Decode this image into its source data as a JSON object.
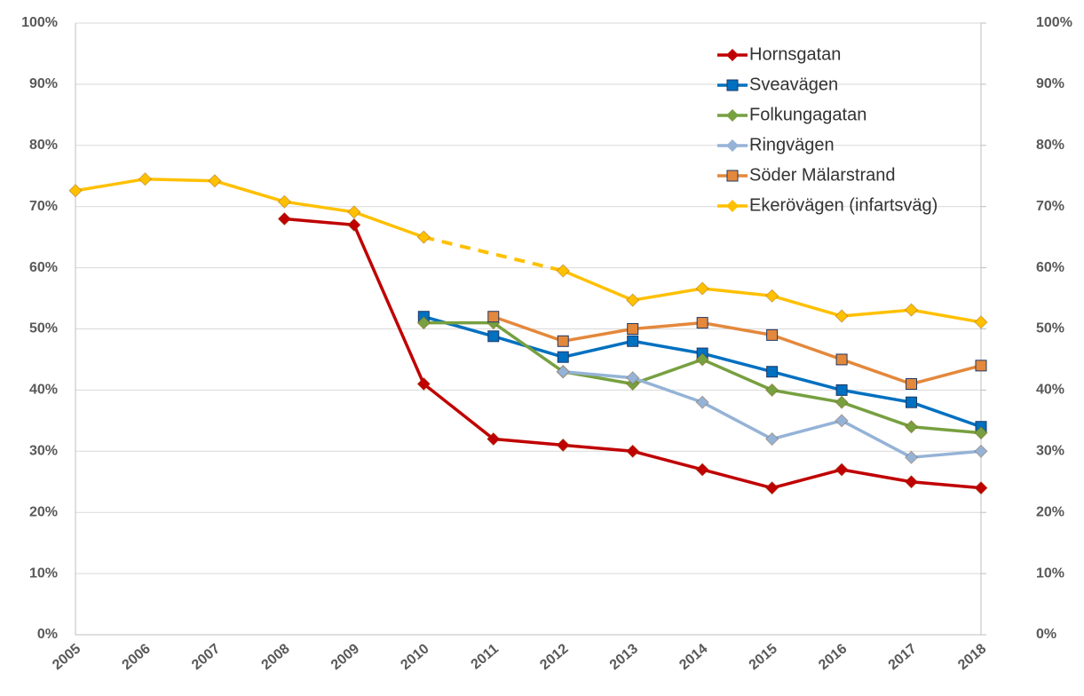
{
  "chart_data": {
    "type": "line",
    "categories": [
      "2005",
      "2006",
      "2007",
      "2008",
      "2009",
      "2010",
      "2011",
      "2012",
      "2013",
      "2014",
      "2015",
      "2016",
      "2017",
      "2018"
    ],
    "series": [
      {
        "name": "Hornsgatan",
        "color": "#c00000",
        "marker": "diamond",
        "values": [
          null,
          null,
          null,
          68,
          67,
          41,
          32,
          31,
          30,
          27,
          24,
          27,
          25,
          24
        ]
      },
      {
        "name": "Sveavägen",
        "color": "#0070c0",
        "marker": "square",
        "values": [
          null,
          null,
          null,
          null,
          null,
          52,
          48.8,
          45.4,
          48,
          46,
          43,
          40,
          38,
          34
        ]
      },
      {
        "name": "Folkungagatan",
        "color": "#77a040",
        "marker": "diamond",
        "values": [
          null,
          null,
          null,
          null,
          null,
          51,
          51,
          43,
          41,
          45,
          40,
          38,
          34,
          33
        ]
      },
      {
        "name": "Ringvägen",
        "color": "#95b3d7",
        "marker": "diamond",
        "values": [
          null,
          null,
          null,
          null,
          null,
          null,
          null,
          43,
          42,
          38,
          32,
          35,
          29,
          30
        ]
      },
      {
        "name": "Söder Mälarstrand",
        "color": "#e4883c",
        "marker": "square",
        "values": [
          null,
          null,
          null,
          null,
          null,
          null,
          52,
          48,
          50,
          51,
          49,
          45,
          41,
          44
        ]
      },
      {
        "name": "Ekerövägen (infartsväg)",
        "color": "#ffc000",
        "marker": "diamond",
        "gaps": "dashed",
        "values": [
          72.6,
          74.5,
          74.2,
          70.8,
          69.1,
          65,
          null,
          59.5,
          54.7,
          56.6,
          55.4,
          52.1,
          53.1,
          51.1
        ]
      }
    ],
    "ylim": [
      0,
      100
    ],
    "yticks": [
      {
        "value": 0,
        "label": "0%"
      },
      {
        "value": 10,
        "label": "10%"
      },
      {
        "value": 20,
        "label": "20%"
      },
      {
        "value": 30,
        "label": "30%"
      },
      {
        "value": 40,
        "label": "40%"
      },
      {
        "value": 50,
        "label": "50%"
      },
      {
        "value": 60,
        "label": "60%"
      },
      {
        "value": 70,
        "label": "70%"
      },
      {
        "value": 80,
        "label": "80%"
      },
      {
        "value": 90,
        "label": "90%"
      },
      {
        "value": 100,
        "label": "100%"
      }
    ],
    "y2lim": [
      0,
      100
    ],
    "y2ticks": [
      {
        "value": 0,
        "label": "0%"
      },
      {
        "value": 10,
        "label": "10%"
      },
      {
        "value": 20,
        "label": "20%"
      },
      {
        "value": 30,
        "label": "30%"
      },
      {
        "value": 40,
        "label": "40%"
      },
      {
        "value": 50,
        "label": "50%"
      },
      {
        "value": 60,
        "label": "60%"
      },
      {
        "value": 70,
        "label": "70%"
      },
      {
        "value": 80,
        "label": "80%"
      },
      {
        "value": 90,
        "label": "90%"
      },
      {
        "value": 100,
        "label": "100%"
      }
    ],
    "grid": true,
    "legend": "top-right"
  }
}
